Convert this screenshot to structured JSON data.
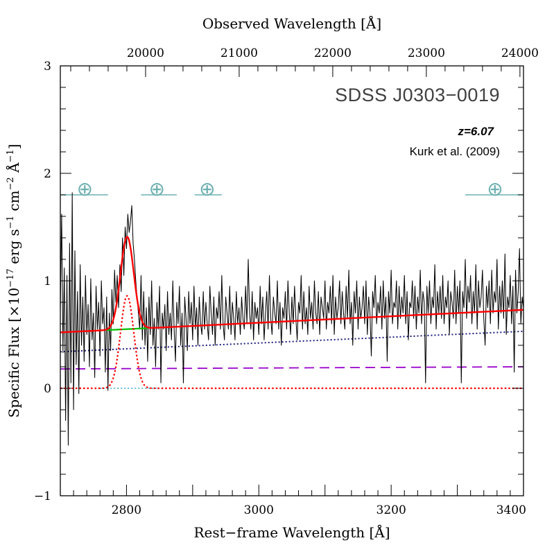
{
  "chart_data": {
    "type": "line",
    "title": "SDSS J0303−0019",
    "annotations": {
      "redshift": "z=6.07",
      "reference": "Kurk et al. (2009)"
    },
    "xlabel": "Rest−frame Wavelength [Å]",
    "x2label": "Observed Wavelength [Å]",
    "ylabel_parts": {
      "a": "Specific Flux [×10",
      "a_sup": "−17",
      "b": " erg s",
      "b_sup": "−1",
      "c": " cm",
      "c_sup": "−2",
      "d": " Å",
      "d_sup": "−1",
      "e": "]"
    },
    "xlim": [
      2700,
      3400
    ],
    "ylim": [
      -1,
      3
    ],
    "redshift": 6.07,
    "x_ticks": [
      2800,
      3000,
      3200,
      3400
    ],
    "x_tick_labels": [
      "2800",
      "3000",
      "3200",
      "3400"
    ],
    "x2_ticks": [
      20000,
      21000,
      22000,
      23000,
      24000
    ],
    "x2_tick_labels": [
      "20000",
      "21000",
      "22000",
      "23000",
      "24000"
    ],
    "y_ticks": [
      -1,
      0,
      1,
      2,
      3
    ],
    "y_tick_labels": [
      "−1",
      "0",
      "1",
      "2",
      "3"
    ],
    "telluric_symbol": "⊕",
    "telluric_bands": [
      {
        "x0": 2700,
        "x1": 2772,
        "xc": 2737
      },
      {
        "x0": 2822,
        "x1": 2876,
        "xc": 2846
      },
      {
        "x0": 2903,
        "x1": 2944,
        "xc": 2922
      },
      {
        "x0": 3312,
        "x1": 3400,
        "xc": 3357
      }
    ],
    "continuum": {
      "x0": 2700,
      "y0": 0.52,
      "x1": 3400,
      "y1": 0.73
    },
    "balmer_line": {
      "x0": 2700,
      "y0": 0.34,
      "x1": 3400,
      "y1": 0.53
    },
    "powerlaw_line": {
      "x0": 2700,
      "y0": 0.18,
      "x1": 3400,
      "y1": 0.2
    },
    "mgii_gaussian": {
      "center": 2801,
      "sigma": 10,
      "amplitude": 0.86
    },
    "series": [
      {
        "name": "observed spectrum",
        "color": "#000000"
      },
      {
        "name": "total model fit",
        "color": "#ff0000"
      },
      {
        "name": "Mg II emission line",
        "color": "#ff0000"
      },
      {
        "name": "continuum under Mg II",
        "color": "#00c000"
      },
      {
        "name": "Balmer continuum",
        "color": "#1a1a7a"
      },
      {
        "name": "power-law continuum",
        "color": "#9900cc"
      },
      {
        "name": "zero level",
        "color": "#33aacc"
      }
    ],
    "spectrum": {
      "x_start": 2700,
      "x_step": 2,
      "flux": [
        0.72,
        1.62,
        0.33,
        1.12,
        -0.3,
        1.05,
        -0.53,
        1.35,
        0.05,
        1.82,
        -0.2,
        1.28,
        0.22,
        0.9,
        -0.05,
        1.15,
        0.4,
        0.85,
        0.25,
        1.05,
        0.5,
        0.78,
        0.2,
        1.02,
        0.45,
        0.7,
        0.1,
        0.95,
        0.55,
        0.8,
        0.3,
        1.0,
        0.6,
        0.75,
        0.15,
        0.85,
        -0.02,
        0.7,
        0.35,
        0.92,
        0.6,
        1.1,
        0.8,
        1.05,
        0.75,
        1.15,
        0.9,
        1.4,
        1.05,
        1.5,
        1.3,
        1.62,
        1.45,
        1.55,
        1.7,
        1.35,
        1.2,
        1.0,
        0.85,
        0.7,
        0.55,
        1.05,
        0.45,
        0.9,
        0.4,
        0.75,
        0.25,
        0.85,
        0.5,
        1.0,
        0.4,
        0.65,
        0.2,
        0.8,
        0.55,
        0.95,
        0.05,
        0.7,
        0.55,
        0.78,
        0.35,
        0.9,
        0.5,
        0.7,
        0.45,
        1.0,
        0.55,
        0.25,
        0.8,
        0.6,
        0.95,
        0.4,
        0.7,
        0.05,
        0.85,
        0.65,
        0.35,
        0.9,
        0.6,
        0.8,
        0.45,
        0.95,
        0.55,
        0.75,
        0.4,
        0.85,
        0.6,
        0.5,
        0.9,
        0.55,
        0.8,
        0.6,
        0.45,
        0.95,
        0.7,
        0.5,
        0.85,
        0.4,
        0.75,
        0.65,
        0.9,
        0.55,
        1.05,
        0.6,
        0.45,
        0.85,
        0.7,
        0.55,
        0.95,
        0.5,
        0.8,
        0.65,
        0.45,
        0.9,
        0.6,
        0.75,
        0.5,
        0.85,
        0.65,
        0.55,
        0.95,
        0.6,
        1.2,
        0.7,
        0.55,
        0.9,
        0.45,
        0.8,
        0.65,
        0.75,
        0.5,
        0.95,
        0.6,
        0.85,
        0.45,
        0.7,
        0.9,
        0.55,
        1.05,
        0.65,
        0.5,
        0.85,
        0.7,
        0.6,
        1.0,
        0.55,
        0.8,
        0.4,
        0.75,
        0.65,
        0.9,
        0.55,
        1.0,
        0.7,
        0.5,
        0.85,
        0.6,
        0.95,
        0.65,
        0.45,
        0.8,
        0.7,
        1.05,
        0.55,
        0.9,
        0.6,
        0.75,
        0.5,
        0.95,
        0.65,
        0.8,
        0.55,
        1.0,
        0.7,
        0.6,
        0.9,
        0.5,
        0.85,
        0.75,
        0.65,
        1.0,
        0.55,
        0.8,
        0.7,
        0.95,
        0.6,
        1.05,
        0.5,
        0.85,
        0.65,
        0.75,
        1.0,
        0.6,
        0.9,
        0.7,
        0.55,
        0.95,
        0.65,
        1.1,
        0.6,
        0.8,
        0.4,
        0.9,
        0.7,
        1.0,
        0.55,
        0.85,
        0.65,
        0.75,
        0.95,
        0.6,
        1.0,
        0.5,
        0.85,
        0.7,
        0.3,
        0.9,
        0.75,
        1.05,
        0.6,
        0.8,
        0.7,
        0.95,
        0.55,
        1.0,
        0.65,
        0.85,
        0.25,
        0.9,
        0.7,
        1.1,
        0.6,
        0.8,
        0.75,
        1.0,
        0.55,
        0.95,
        0.65,
        0.85,
        0.7,
        1.05,
        0.6,
        0.9,
        0.45,
        0.8,
        0.75,
        1.0,
        0.65,
        0.95,
        0.55,
        0.85,
        0.7,
        1.1,
        0.6,
        0.9,
        0.8,
        0.05,
        0.95,
        0.7,
        1.0,
        0.6,
        0.85,
        0.75,
        1.15,
        0.55,
        0.9,
        0.7,
        0.95,
        0.65,
        1.05,
        0.6,
        0.85,
        0.75,
        1.0,
        0.5,
        0.9,
        0.8,
        0.65,
        1.1,
        0.6,
        0.95,
        0.7,
        1.0,
        0.05,
        0.9,
        0.75,
        1.2,
        0.65,
        0.95,
        0.8,
        1.05,
        0.6,
        0.9,
        0.7,
        1.15,
        0.55,
        1.0,
        0.75,
        0.85,
        1.1,
        0.65,
        0.4,
        0.95,
        0.75,
        1.0,
        0.6,
        1.1,
        0.7,
        0.9,
        0.8,
        1.2,
        0.55,
        0.95,
        0.7,
        1.0,
        0.65,
        1.25,
        0.5,
        0.85,
        0.75,
        1.05,
        0.6,
        0.95,
        0.15,
        1.1,
        0.7,
        0.9,
        1.3,
        0.6,
        0.85,
        0.75,
        1.05,
        0.45,
        0.95,
        0.8,
        1.2,
        0.6,
        0.9,
        0.7,
        1.1,
        0.75,
        0.95,
        0.55,
        0.85,
        0.04,
        1.0,
        0.8,
        1.25,
        0.65,
        0.95,
        0.75,
        1.15,
        0.1,
        0.9,
        0.7,
        1.05
      ]
    }
  }
}
